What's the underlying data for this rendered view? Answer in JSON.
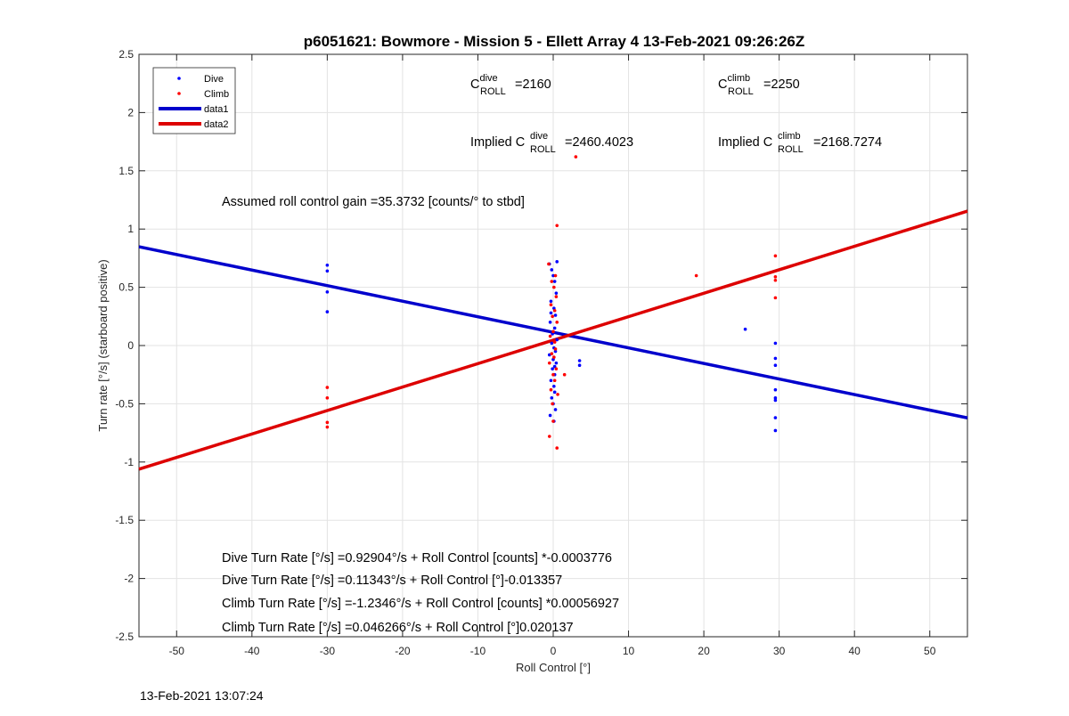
{
  "chart_data": {
    "type": "scatter",
    "title": "p6051621: Bowmore - Mission 5 - Ellett Array 4 13-Feb-2021 09:26:26Z",
    "xlabel": "Roll Control [°]",
    "ylabel": "Turn rate [°/s] (starboard positive)",
    "xlim": [
      -55,
      55
    ],
    "ylim": [
      -2.5,
      2.5
    ],
    "xticks": [
      -50,
      -40,
      -30,
      -20,
      -10,
      0,
      10,
      20,
      30,
      40,
      50
    ],
    "yticks": [
      -2.5,
      -2,
      -1.5,
      -1,
      -0.5,
      0,
      0.5,
      1,
      1.5,
      2,
      2.5
    ],
    "grid": true,
    "legend_position": "top-left",
    "series": [
      {
        "name": "Dive",
        "kind": "points",
        "color": "#0000ff",
        "x": [
          -30,
          -30,
          -30,
          -30,
          -0.5,
          -0.2,
          0,
          0.2,
          0.4,
          -0.3,
          0.1,
          0.3,
          -0.4,
          0.2,
          -0.1,
          0.5,
          -0.2,
          0.1,
          0.3,
          -0.5,
          0,
          0.4,
          -0.1,
          0.2,
          -0.3,
          0.1,
          0.2,
          -0.2,
          0,
          0.3,
          -0.4,
          0.1,
          0.5,
          -0.3,
          0.2,
          3.5,
          3.5,
          25.5,
          29.5,
          29.5,
          29.5,
          29.5,
          29.5,
          29.5,
          29.5,
          29.5
        ],
        "y": [
          0.69,
          0.64,
          0.46,
          0.29,
          0.7,
          0.65,
          0.6,
          0.55,
          0.45,
          0.38,
          0.32,
          0.26,
          0.2,
          0.15,
          0.1,
          0.05,
          0.02,
          -0.02,
          -0.05,
          -0.08,
          -0.12,
          -0.15,
          -0.2,
          -0.25,
          -0.3,
          -0.35,
          -0.4,
          -0.45,
          -0.5,
          -0.55,
          -0.6,
          -0.65,
          0.72,
          0.28,
          -0.18,
          -0.13,
          -0.17,
          0.14,
          0.02,
          -0.11,
          -0.17,
          -0.38,
          -0.45,
          -0.47,
          -0.62,
          -0.73
        ]
      },
      {
        "name": "Climb",
        "kind": "points",
        "color": "#ff0000",
        "x": [
          -30,
          -30,
          -30,
          -30,
          3,
          0.5,
          -0.6,
          0.3,
          -0.2,
          0.1,
          0.4,
          -0.3,
          0.2,
          -0.1,
          0.5,
          0,
          -0.4,
          0.2,
          0.3,
          -0.2,
          0.1,
          -0.5,
          0.4,
          0,
          0.2,
          -0.3,
          0.6,
          -0.1,
          1.5,
          0,
          -0.5,
          0.5,
          19,
          29.5,
          29.5,
          29.5,
          29.5
        ],
        "y": [
          -0.36,
          -0.45,
          -0.66,
          -0.7,
          1.62,
          1.03,
          0.7,
          0.6,
          0.55,
          0.5,
          0.42,
          0.35,
          0.3,
          0.25,
          0.2,
          0.12,
          0.08,
          0.03,
          -0.03,
          -0.07,
          -0.1,
          -0.15,
          -0.2,
          -0.25,
          -0.3,
          -0.38,
          -0.42,
          -0.5,
          -0.25,
          -0.65,
          -0.78,
          -0.88,
          0.6,
          0.77,
          0.59,
          0.56,
          0.41
        ]
      },
      {
        "name": "data1",
        "kind": "line",
        "color": "#0000cc",
        "intercept": 0.11343,
        "slope": -0.013357
      },
      {
        "name": "data2",
        "kind": "line",
        "color": "#dd0000",
        "intercept": 0.046266,
        "slope": 0.020137
      }
    ],
    "annotations": {
      "c_dive": {
        "base": "C",
        "sup": "dive",
        "sub": "ROLL",
        "value": "=2160"
      },
      "c_climb": {
        "base": "C",
        "sup": "climb",
        "sub": "ROLL",
        "value": "=2250"
      },
      "implied_dive": {
        "prefix": "Implied C",
        "sup": "dive",
        "sub": "ROLL",
        "value": "=2460.4023"
      },
      "implied_climb": {
        "prefix": "Implied C",
        "sup": "climb",
        "sub": "ROLL",
        "value": "=2168.7274"
      },
      "gain": "Assumed roll control gain =35.3732 [counts/° to stbd]",
      "fits": [
        "Dive Turn Rate [°/s] =0.92904°/s + Roll Control [counts] *-0.0003776",
        "Dive Turn Rate [°/s] =0.11343°/s + Roll Control [°]-0.013357",
        "Climb Turn Rate [°/s] =-1.2346°/s + Roll Control [counts] *0.00056927",
        "Climb Turn Rate [°/s] =0.046266°/s + Roll Control [°]0.020137"
      ]
    }
  },
  "footer_timestamp": "13-Feb-2021 13:07:24"
}
